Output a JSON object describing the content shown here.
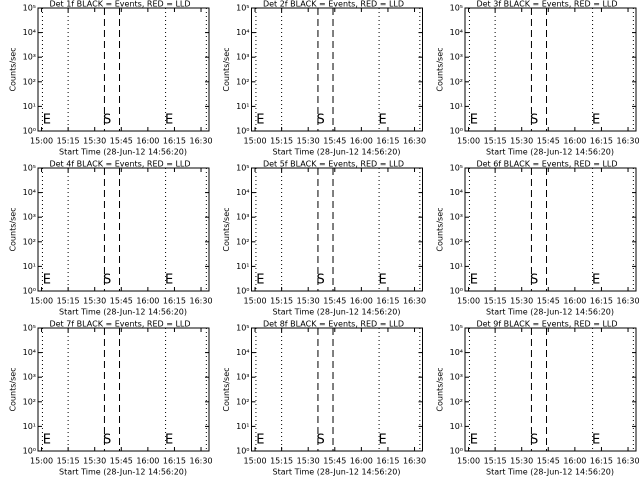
{
  "chart_data": [
    {
      "type": "line",
      "title": "Det 1f BLACK = Events, RED = LLD",
      "xlabel": "Start Time (28-Jun-12 14:56:20)",
      "ylabel": "Counts/sec",
      "log_y": true,
      "xlim": [
        "14:58",
        "16:34:30"
      ],
      "xticks": [
        "15:00",
        "15:15",
        "15:30",
        "15:45",
        "16:00",
        "16:15",
        "16:30"
      ],
      "ylim": [
        1,
        100000
      ],
      "yticks": [
        {
          "value": 1,
          "label": "10⁰"
        },
        {
          "value": 10,
          "label": "10¹"
        },
        {
          "value": 100,
          "label": "10²"
        },
        {
          "value": 1000,
          "label": "10³"
        },
        {
          "value": 10000,
          "label": "10⁴"
        },
        {
          "value": 100000,
          "label": "10⁵"
        }
      ],
      "markers": [
        {
          "time": "15:00:30",
          "style": "dotted"
        },
        {
          "time": "15:15",
          "style": "dotted"
        },
        {
          "time": "15:35:30",
          "style": "dashed"
        },
        {
          "time": "15:44",
          "style": "dashed"
        },
        {
          "time": "16:10",
          "style": "dotted"
        },
        {
          "time": "16:33",
          "style": "dotted"
        }
      ],
      "annotations": [
        {
          "text": "E",
          "time": "15:03"
        },
        {
          "text": "S",
          "time": "15:37"
        },
        {
          "text": "E",
          "time": "16:12"
        }
      ]
    },
    {
      "type": "line",
      "title": "Det 2f BLACK = Events, RED = LLD",
      "xlabel": "Start Time (28-Jun-12 14:56:20)",
      "ylabel": "Counts/sec",
      "log_y": true,
      "xlim": [
        "14:58",
        "16:34:30"
      ],
      "xticks": [
        "15:00",
        "15:15",
        "15:30",
        "15:45",
        "16:00",
        "16:15",
        "16:30"
      ],
      "ylim": [
        1,
        100000
      ],
      "yticks": [
        {
          "value": 1,
          "label": "10⁰"
        },
        {
          "value": 10,
          "label": "10¹"
        },
        {
          "value": 100,
          "label": "10²"
        },
        {
          "value": 1000,
          "label": "10³"
        },
        {
          "value": 10000,
          "label": "10⁴"
        },
        {
          "value": 100000,
          "label": "10⁵"
        }
      ],
      "markers": [
        {
          "time": "15:00:30",
          "style": "dotted"
        },
        {
          "time": "15:15",
          "style": "dotted"
        },
        {
          "time": "15:35:30",
          "style": "dashed"
        },
        {
          "time": "15:44",
          "style": "dashed"
        },
        {
          "time": "16:10",
          "style": "dotted"
        },
        {
          "time": "16:33",
          "style": "dotted"
        }
      ],
      "annotations": [
        {
          "text": "E",
          "time": "15:03"
        },
        {
          "text": "S",
          "time": "15:37"
        },
        {
          "text": "E",
          "time": "16:12"
        }
      ]
    },
    {
      "type": "line",
      "title": "Det 3f BLACK = Events, RED = LLD",
      "xlabel": "Start Time (28-Jun-12 14:56:20)",
      "ylabel": "Counts/sec",
      "log_y": true,
      "xlim": [
        "14:58",
        "16:34:30"
      ],
      "xticks": [
        "15:00",
        "15:15",
        "15:30",
        "15:45",
        "16:00",
        "16:15",
        "16:30"
      ],
      "ylim": [
        1,
        100000
      ],
      "yticks": [
        {
          "value": 1,
          "label": "10⁰"
        },
        {
          "value": 10,
          "label": "10¹"
        },
        {
          "value": 100,
          "label": "10²"
        },
        {
          "value": 1000,
          "label": "10³"
        },
        {
          "value": 10000,
          "label": "10⁴"
        },
        {
          "value": 100000,
          "label": "10⁵"
        }
      ],
      "markers": [
        {
          "time": "15:00:30",
          "style": "dotted"
        },
        {
          "time": "15:15",
          "style": "dotted"
        },
        {
          "time": "15:35:30",
          "style": "dashed"
        },
        {
          "time": "15:44",
          "style": "dashed"
        },
        {
          "time": "16:10",
          "style": "dotted"
        },
        {
          "time": "16:33",
          "style": "dotted"
        }
      ],
      "annotations": [
        {
          "text": "E",
          "time": "15:03"
        },
        {
          "text": "S",
          "time": "15:37"
        },
        {
          "text": "E",
          "time": "16:12"
        }
      ]
    },
    {
      "type": "line",
      "title": "Det 4f BLACK = Events, RED = LLD",
      "xlabel": "Start Time (28-Jun-12 14:56:20)",
      "ylabel": "Counts/sec",
      "log_y": true,
      "xlim": [
        "14:58",
        "16:34:30"
      ],
      "xticks": [
        "15:00",
        "15:15",
        "15:30",
        "15:45",
        "16:00",
        "16:15",
        "16:30"
      ],
      "ylim": [
        1,
        100000
      ],
      "yticks": [
        {
          "value": 1,
          "label": "10⁰"
        },
        {
          "value": 10,
          "label": "10¹"
        },
        {
          "value": 100,
          "label": "10²"
        },
        {
          "value": 1000,
          "label": "10³"
        },
        {
          "value": 10000,
          "label": "10⁴"
        },
        {
          "value": 100000,
          "label": "10⁵"
        }
      ],
      "markers": [
        {
          "time": "15:00:30",
          "style": "dotted"
        },
        {
          "time": "15:15",
          "style": "dotted"
        },
        {
          "time": "15:35:30",
          "style": "dashed"
        },
        {
          "time": "15:44",
          "style": "dashed"
        },
        {
          "time": "16:10",
          "style": "dotted"
        },
        {
          "time": "16:33",
          "style": "dotted"
        }
      ],
      "annotations": [
        {
          "text": "E",
          "time": "15:03"
        },
        {
          "text": "S",
          "time": "15:37"
        },
        {
          "text": "E",
          "time": "16:12"
        }
      ]
    },
    {
      "type": "line",
      "title": "Det 5f BLACK = Events, RED = LLD",
      "xlabel": "Start Time (28-Jun-12 14:56:20)",
      "ylabel": "Counts/sec",
      "log_y": true,
      "xlim": [
        "14:58",
        "16:34:30"
      ],
      "xticks": [
        "15:00",
        "15:15",
        "15:30",
        "15:45",
        "16:00",
        "16:15",
        "16:30"
      ],
      "ylim": [
        1,
        100000
      ],
      "yticks": [
        {
          "value": 1,
          "label": "10⁰"
        },
        {
          "value": 10,
          "label": "10¹"
        },
        {
          "value": 100,
          "label": "10²"
        },
        {
          "value": 1000,
          "label": "10³"
        },
        {
          "value": 10000,
          "label": "10⁴"
        },
        {
          "value": 100000,
          "label": "10⁵"
        }
      ],
      "markers": [
        {
          "time": "15:00:30",
          "style": "dotted"
        },
        {
          "time": "15:15",
          "style": "dotted"
        },
        {
          "time": "15:35:30",
          "style": "dashed"
        },
        {
          "time": "15:44",
          "style": "dashed"
        },
        {
          "time": "16:10",
          "style": "dotted"
        },
        {
          "time": "16:33",
          "style": "dotted"
        }
      ],
      "annotations": [
        {
          "text": "E",
          "time": "15:03"
        },
        {
          "text": "S",
          "time": "15:37"
        },
        {
          "text": "E",
          "time": "16:12"
        }
      ]
    },
    {
      "type": "line",
      "title": "Det 6f BLACK = Events, RED = LLD",
      "xlabel": "Start Time (28-Jun-12 14:56:20)",
      "ylabel": "Counts/sec",
      "log_y": true,
      "xlim": [
        "14:58",
        "16:34:30"
      ],
      "xticks": [
        "15:00",
        "15:15",
        "15:30",
        "15:45",
        "16:00",
        "16:15",
        "16:30"
      ],
      "ylim": [
        1,
        100000
      ],
      "yticks": [
        {
          "value": 1,
          "label": "10⁰"
        },
        {
          "value": 10,
          "label": "10¹"
        },
        {
          "value": 100,
          "label": "10²"
        },
        {
          "value": 1000,
          "label": "10³"
        },
        {
          "value": 10000,
          "label": "10⁴"
        },
        {
          "value": 100000,
          "label": "10⁵"
        }
      ],
      "markers": [
        {
          "time": "15:00:30",
          "style": "dotted"
        },
        {
          "time": "15:15",
          "style": "dotted"
        },
        {
          "time": "15:35:30",
          "style": "dashed"
        },
        {
          "time": "15:44",
          "style": "dashed"
        },
        {
          "time": "16:10",
          "style": "dotted"
        },
        {
          "time": "16:33",
          "style": "dotted"
        }
      ],
      "annotations": [
        {
          "text": "E",
          "time": "15:03"
        },
        {
          "text": "S",
          "time": "15:37"
        },
        {
          "text": "E",
          "time": "16:12"
        }
      ]
    },
    {
      "type": "line",
      "title": "Det 7f BLACK = Events, RED = LLD",
      "xlabel": "Start Time (28-Jun-12 14:56:20)",
      "ylabel": "Counts/sec",
      "log_y": true,
      "xlim": [
        "14:58",
        "16:34:30"
      ],
      "xticks": [
        "15:00",
        "15:15",
        "15:30",
        "15:45",
        "16:00",
        "16:15",
        "16:30"
      ],
      "ylim": [
        1,
        100000
      ],
      "yticks": [
        {
          "value": 1,
          "label": "10⁰"
        },
        {
          "value": 10,
          "label": "10¹"
        },
        {
          "value": 100,
          "label": "10²"
        },
        {
          "value": 1000,
          "label": "10³"
        },
        {
          "value": 10000,
          "label": "10⁴"
        },
        {
          "value": 100000,
          "label": "10⁵"
        }
      ],
      "markers": [
        {
          "time": "15:00:30",
          "style": "dotted"
        },
        {
          "time": "15:15",
          "style": "dotted"
        },
        {
          "time": "15:35:30",
          "style": "dashed"
        },
        {
          "time": "15:44",
          "style": "dashed"
        },
        {
          "time": "16:10",
          "style": "dotted"
        },
        {
          "time": "16:33",
          "style": "dotted"
        }
      ],
      "annotations": [
        {
          "text": "E",
          "time": "15:03"
        },
        {
          "text": "S",
          "time": "15:37"
        },
        {
          "text": "E",
          "time": "16:12"
        }
      ]
    },
    {
      "type": "line",
      "title": "Det 8f BLACK = Events, RED = LLD",
      "xlabel": "Start Time (28-Jun-12 14:56:20)",
      "ylabel": "Counts/sec",
      "log_y": true,
      "xlim": [
        "14:58",
        "16:34:30"
      ],
      "xticks": [
        "15:00",
        "15:15",
        "15:30",
        "15:45",
        "16:00",
        "16:15",
        "16:30"
      ],
      "ylim": [
        1,
        100000
      ],
      "yticks": [
        {
          "value": 1,
          "label": "10⁰"
        },
        {
          "value": 10,
          "label": "10¹"
        },
        {
          "value": 100,
          "label": "10²"
        },
        {
          "value": 1000,
          "label": "10³"
        },
        {
          "value": 10000,
          "label": "10⁴"
        },
        {
          "value": 100000,
          "label": "10⁵"
        }
      ],
      "markers": [
        {
          "time": "15:00:30",
          "style": "dotted"
        },
        {
          "time": "15:15",
          "style": "dotted"
        },
        {
          "time": "15:35:30",
          "style": "dashed"
        },
        {
          "time": "15:44",
          "style": "dashed"
        },
        {
          "time": "16:10",
          "style": "dotted"
        },
        {
          "time": "16:33",
          "style": "dotted"
        }
      ],
      "annotations": [
        {
          "text": "E",
          "time": "15:03"
        },
        {
          "text": "S",
          "time": "15:37"
        },
        {
          "text": "E",
          "time": "16:12"
        }
      ]
    },
    {
      "type": "line",
      "title": "Det 9f BLACK = Events, RED = LLD",
      "xlabel": "Start Time (28-Jun-12 14:56:20)",
      "ylabel": "Counts/sec",
      "log_y": true,
      "xlim": [
        "14:58",
        "16:34:30"
      ],
      "xticks": [
        "15:00",
        "15:15",
        "15:30",
        "15:45",
        "16:00",
        "16:15",
        "16:30"
      ],
      "ylim": [
        1,
        100000
      ],
      "yticks": [
        {
          "value": 1,
          "label": "10⁰"
        },
        {
          "value": 10,
          "label": "10¹"
        },
        {
          "value": 100,
          "label": "10²"
        },
        {
          "value": 1000,
          "label": "10³"
        },
        {
          "value": 10000,
          "label": "10⁴"
        },
        {
          "value": 100000,
          "label": "10⁵"
        }
      ],
      "markers": [
        {
          "time": "15:00:30",
          "style": "dotted"
        },
        {
          "time": "15:15",
          "style": "dotted"
        },
        {
          "time": "15:35:30",
          "style": "dashed"
        },
        {
          "time": "15:44",
          "style": "dashed"
        },
        {
          "time": "16:10",
          "style": "dotted"
        },
        {
          "time": "16:33",
          "style": "dotted"
        }
      ],
      "annotations": [
        {
          "text": "E",
          "time": "15:03"
        },
        {
          "text": "S",
          "time": "15:37"
        },
        {
          "text": "E",
          "time": "16:12"
        }
      ]
    }
  ]
}
